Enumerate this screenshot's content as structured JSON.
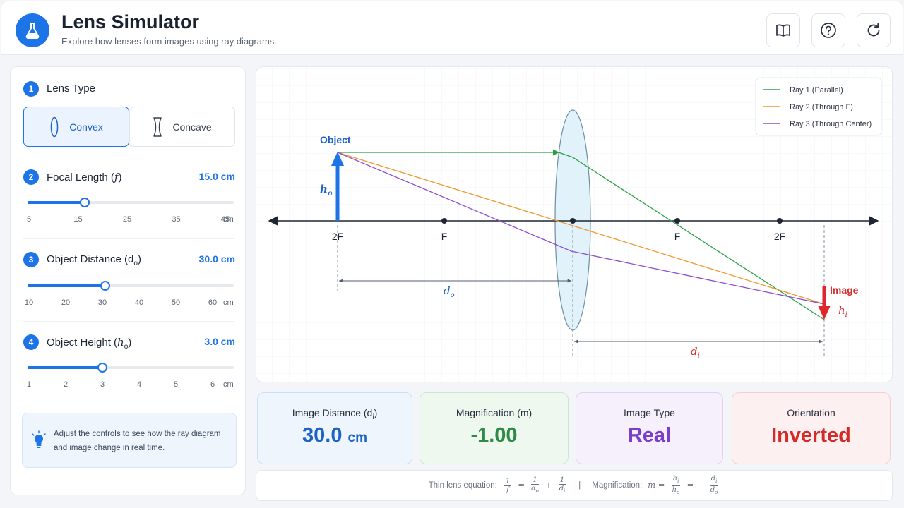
{
  "header": {
    "title": "Lens Simulator",
    "subtitle": "Explore how lenses form images using ray diagrams.",
    "buttons": [
      {
        "name": "guide-button",
        "icon": "book-icon"
      },
      {
        "name": "help-button",
        "icon": "help-icon"
      },
      {
        "name": "reset-button",
        "icon": "refresh-icon"
      }
    ]
  },
  "controls": {
    "lens_type": {
      "step": "1",
      "label": "Lens Type",
      "options": [
        {
          "label": "Convex",
          "selected": true
        },
        {
          "label": "Concave",
          "selected": false
        }
      ]
    },
    "focal_length": {
      "step": "2",
      "label_main": "Focal Length (",
      "label_sym": "f",
      "label_end": ")",
      "value": "15.0 cm",
      "current": 15,
      "min": 3,
      "max": 46,
      "ticks": [
        "5",
        "15",
        "25",
        "35",
        "45"
      ],
      "unit": "cm"
    },
    "object_distance": {
      "step": "3",
      "label_main": "Object Distance (d",
      "label_sub": "o",
      "label_end": ")",
      "value": "30.0 cm",
      "current": 30,
      "min": 10,
      "max": 63,
      "ticks": [
        "10",
        "20",
        "30",
        "40",
        "50",
        "60"
      ],
      "unit": "cm"
    },
    "object_height": {
      "step": "4",
      "label_main": "Object Height (",
      "label_sym": "h",
      "label_sub": "o",
      "label_end": ")",
      "value": "3.0 cm",
      "current": 3,
      "min": 1,
      "max": 6.5,
      "ticks": [
        "1",
        "2",
        "3",
        "4",
        "5",
        "6"
      ],
      "unit": "cm"
    },
    "tip": "Adjust the controls to see how the ray diagram and image change in real time."
  },
  "diagram": {
    "legend": [
      {
        "label": "Ray 1 (Parallel)",
        "color": "#2ea043"
      },
      {
        "label": "Ray 2 (Through F)",
        "color": "#f0962a"
      },
      {
        "label": "Ray 3 (Through Center)",
        "color": "#8d4ccf"
      }
    ],
    "axis_labels": [
      "2F",
      "F",
      "F",
      "2F"
    ],
    "object_label": "Object",
    "image_label": "Image",
    "object_height_label": "h",
    "object_height_sub": "o",
    "image_height_label": "h",
    "image_height_sub": "i",
    "object_distance_label": "d",
    "object_distance_sub": "o",
    "image_distance_label": "d",
    "image_distance_sub": "i",
    "colors": {
      "object": "#1d74e6",
      "image": "#e0262b",
      "lens_fill": "#dcf0fa",
      "lens_stroke": "#6b8fa6"
    }
  },
  "results": [
    {
      "label_main": "Image Distance (d",
      "label_sub": "i",
      "label_end": ")",
      "value": "30.0",
      "unit": "cm",
      "color": "#1d62c7",
      "bg": "#eef5fd",
      "border": "#c9dff7"
    },
    {
      "label_main": "Magnification (m)",
      "value": "-1.00",
      "color": "#2e8b45",
      "bg": "#eef8ef",
      "border": "#cbe8cf"
    },
    {
      "label_main": "Image Type",
      "value": "Real",
      "color": "#7a3fc8",
      "bg": "#f5f0fc",
      "border": "#e0d3f3"
    },
    {
      "label_main": "Orientation",
      "value": "Inverted",
      "color": "#d42a2a",
      "bg": "#fdf0f0",
      "border": "#f4cfcf"
    }
  ],
  "equations": {
    "thin_lens_label": "Thin lens equation:",
    "magnification_label": "Magnification:",
    "separator": "|"
  }
}
